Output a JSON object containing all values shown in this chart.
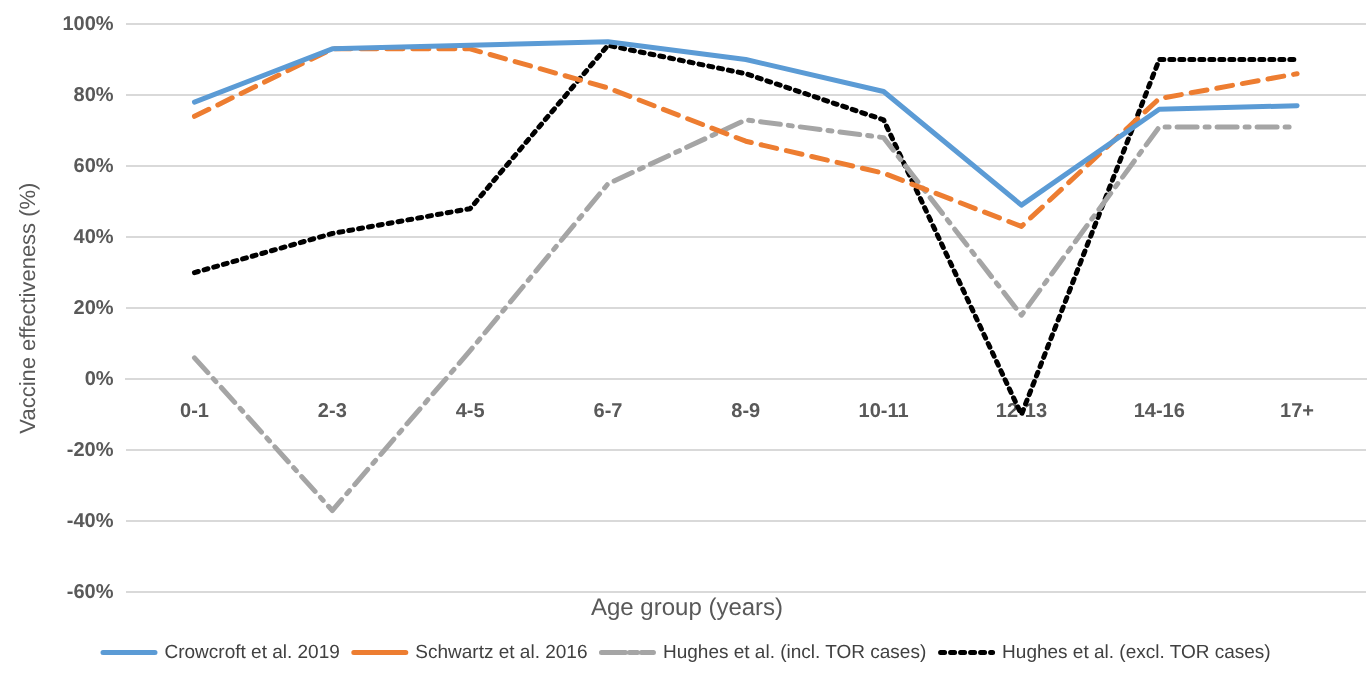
{
  "chart_data": {
    "type": "line",
    "xlabel": "Age group (years)",
    "ylabel": "Vaccine effectiveness (%)",
    "categories": [
      "0-1",
      "2-3",
      "4-5",
      "6-7",
      "8-9",
      "10-11",
      "12-13",
      "14-16",
      "17+"
    ],
    "series": [
      {
        "name": "Crowcroft et al. 2019",
        "color": "#5b9bd5",
        "line_style": "solid",
        "values": [
          78,
          93,
          94,
          95,
          90,
          81,
          49,
          76,
          77
        ]
      },
      {
        "name": "Schwartz et al. 2016",
        "color": "#ed7d31",
        "line_style": "dashed",
        "values": [
          74,
          93,
          93,
          82,
          67,
          58,
          43,
          79,
          86
        ]
      },
      {
        "name": "Hughes et al. (incl. TOR cases)",
        "color": "#a5a5a5",
        "line_style": "dashdot",
        "values": [
          6,
          -37,
          8,
          55,
          73,
          68,
          18,
          71,
          71
        ]
      },
      {
        "name": "Hughes et al. (excl. TOR cases)",
        "color": "#000000",
        "line_style": "dotted",
        "values": [
          30,
          41,
          48,
          94,
          86,
          73,
          -10,
          90,
          90
        ]
      }
    ],
    "ylim": [
      -60,
      100
    ],
    "yticks": [
      {
        "value": -60,
        "label": "-60%"
      },
      {
        "value": -40,
        "label": "-40%"
      },
      {
        "value": -20,
        "label": "-20%"
      },
      {
        "value": 0,
        "label": "0%"
      },
      {
        "value": 20,
        "label": "20%"
      },
      {
        "value": 40,
        "label": "40%"
      },
      {
        "value": 60,
        "label": "60%"
      },
      {
        "value": 80,
        "label": "80%"
      },
      {
        "value": 100,
        "label": "100%"
      }
    ],
    "grid": "y",
    "legend": "bottom",
    "marker": "none"
  }
}
